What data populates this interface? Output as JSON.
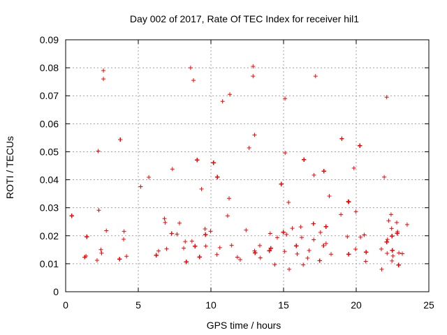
{
  "chart_data": {
    "type": "scatter",
    "title": "Day 002 of 2017, Rate Of TEC Index for receiver hil1",
    "xlabel": "GPS time / hours",
    "ylabel": "ROTI / TECUs",
    "xlim": [
      0,
      25
    ],
    "ylim": [
      0,
      0.09
    ],
    "xticks": [
      "0",
      "5",
      "10",
      "15",
      "20",
      "25"
    ],
    "yticks": [
      "0",
      "0.01",
      "0.02",
      "0.03",
      "0.04",
      "0.05",
      "0.06",
      "0.07",
      "0.08",
      "0.09"
    ],
    "grid": true,
    "marker": "plus",
    "color": "#ff0000",
    "series": [
      {
        "name": "ROTI",
        "x_range": [
          0,
          23.8
        ],
        "data_gap": [
          5.5,
          5.65
        ],
        "typical_range": [
          0.005,
          0.045
        ],
        "outliers": [
          {
            "x": 2.6,
            "y": 0.079
          },
          {
            "x": 2.6,
            "y": 0.076
          },
          {
            "x": 8.6,
            "y": 0.08
          },
          {
            "x": 8.8,
            "y": 0.0755
          },
          {
            "x": 12.9,
            "y": 0.0805
          },
          {
            "x": 12.9,
            "y": 0.077
          },
          {
            "x": 17.2,
            "y": 0.077
          },
          {
            "x": 15.1,
            "y": 0.069
          },
          {
            "x": 22.1,
            "y": 0.0695
          },
          {
            "x": 11.3,
            "y": 0.0705
          },
          {
            "x": 10.8,
            "y": 0.068
          }
        ]
      }
    ]
  }
}
